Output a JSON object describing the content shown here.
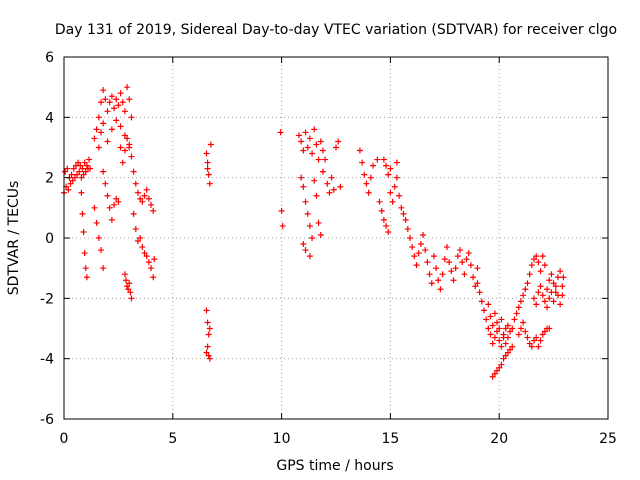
{
  "chart_data": {
    "type": "scatter",
    "title": "Day 131 of 2019, Sidereal Day-to-day VTEC variation (SDTVAR) for receiver clgo",
    "xlabel": "GPS time / hours",
    "ylabel": "SDTVAR / TECUs",
    "xlim": [
      0,
      25
    ],
    "ylim": [
      -6,
      6
    ],
    "xticks": [
      0,
      5,
      10,
      15,
      20,
      25
    ],
    "yticks": [
      -6,
      -4,
      -2,
      0,
      2,
      4,
      6
    ],
    "xtick_labels": [
      "0",
      "5",
      "10",
      "15",
      "20",
      "25"
    ],
    "ytick_labels": [
      "-6",
      "-4",
      "-2",
      "0",
      "2",
      "4",
      "6"
    ],
    "grid": true,
    "marker": "+",
    "series_color": "#ff0000",
    "series": [
      {
        "name": "SDTVAR",
        "points": [
          [
            0.0,
            1.5
          ],
          [
            0.05,
            2.2
          ],
          [
            0.1,
            1.7
          ],
          [
            0.15,
            2.3
          ],
          [
            0.2,
            1.6
          ],
          [
            0.25,
            2.0
          ],
          [
            0.3,
            1.8
          ],
          [
            0.35,
            2.1
          ],
          [
            0.4,
            1.9
          ],
          [
            0.45,
            2.3
          ],
          [
            0.5,
            2.0
          ],
          [
            0.55,
            2.4
          ],
          [
            0.6,
            2.1
          ],
          [
            0.65,
            2.5
          ],
          [
            0.7,
            2.2
          ],
          [
            0.75,
            2.4
          ],
          [
            0.8,
            2.0
          ],
          [
            0.85,
            2.3
          ],
          [
            0.9,
            2.1
          ],
          [
            0.95,
            2.5
          ],
          [
            1.0,
            2.2
          ],
          [
            1.05,
            2.4
          ],
          [
            1.1,
            2.3
          ],
          [
            1.15,
            2.6
          ],
          [
            1.2,
            2.3
          ],
          [
            0.8,
            1.5
          ],
          [
            0.85,
            0.8
          ],
          [
            0.9,
            0.2
          ],
          [
            0.95,
            -0.5
          ],
          [
            1.0,
            -1.0
          ],
          [
            1.05,
            -1.3
          ],
          [
            1.4,
            1.0
          ],
          [
            1.5,
            0.5
          ],
          [
            1.6,
            0.0
          ],
          [
            1.7,
            -0.4
          ],
          [
            1.8,
            -1.0
          ],
          [
            1.4,
            3.3
          ],
          [
            1.5,
            3.6
          ],
          [
            1.6,
            4.0
          ],
          [
            1.7,
            4.5
          ],
          [
            1.8,
            4.9
          ],
          [
            1.9,
            4.6
          ],
          [
            2.0,
            4.2
          ],
          [
            2.1,
            4.5
          ],
          [
            2.2,
            4.7
          ],
          [
            2.3,
            4.3
          ],
          [
            2.4,
            4.6
          ],
          [
            2.5,
            4.4
          ],
          [
            2.6,
            4.8
          ],
          [
            2.7,
            4.5
          ],
          [
            2.8,
            4.2
          ],
          [
            2.9,
            5.0
          ],
          [
            3.0,
            4.6
          ],
          [
            3.1,
            4.0
          ],
          [
            1.6,
            3.0
          ],
          [
            1.7,
            3.5
          ],
          [
            1.8,
            3.8
          ],
          [
            2.0,
            3.2
          ],
          [
            2.2,
            3.6
          ],
          [
            2.4,
            3.9
          ],
          [
            2.6,
            3.7
          ],
          [
            2.8,
            3.4
          ],
          [
            3.0,
            3.0
          ],
          [
            1.8,
            2.2
          ],
          [
            1.9,
            1.8
          ],
          [
            2.0,
            1.4
          ],
          [
            2.1,
            1.0
          ],
          [
            2.2,
            0.6
          ],
          [
            2.3,
            1.1
          ],
          [
            2.4,
            1.3
          ],
          [
            2.5,
            1.2
          ],
          [
            2.6,
            3.0
          ],
          [
            2.7,
            2.5
          ],
          [
            2.8,
            2.9
          ],
          [
            2.9,
            3.3
          ],
          [
            3.0,
            3.1
          ],
          [
            3.1,
            2.7
          ],
          [
            3.2,
            2.2
          ],
          [
            3.3,
            1.8
          ],
          [
            3.4,
            1.5
          ],
          [
            3.5,
            1.3
          ],
          [
            3.6,
            1.2
          ],
          [
            3.7,
            1.4
          ],
          [
            3.8,
            1.6
          ],
          [
            3.9,
            1.3
          ],
          [
            4.0,
            1.1
          ],
          [
            4.1,
            0.9
          ],
          [
            2.8,
            -1.2
          ],
          [
            2.85,
            -1.4
          ],
          [
            2.9,
            -1.6
          ],
          [
            2.95,
            -1.7
          ],
          [
            3.0,
            -1.5
          ],
          [
            3.05,
            -1.8
          ],
          [
            3.1,
            -2.0
          ],
          [
            3.2,
            0.8
          ],
          [
            3.3,
            0.3
          ],
          [
            3.4,
            -0.1
          ],
          [
            3.5,
            0.0
          ],
          [
            3.6,
            -0.3
          ],
          [
            3.7,
            -0.5
          ],
          [
            3.8,
            -0.6
          ],
          [
            3.9,
            -0.8
          ],
          [
            4.0,
            -1.0
          ],
          [
            4.1,
            -1.3
          ],
          [
            4.15,
            -0.7
          ],
          [
            6.55,
            2.8
          ],
          [
            6.6,
            2.5
          ],
          [
            6.65,
            2.1
          ],
          [
            6.7,
            1.8
          ],
          [
            6.75,
            3.1
          ],
          [
            6.6,
            2.3
          ],
          [
            6.55,
            -2.4
          ],
          [
            6.6,
            -2.8
          ],
          [
            6.65,
            -3.2
          ],
          [
            6.7,
            -3.0
          ],
          [
            6.6,
            -3.6
          ],
          [
            6.65,
            -3.9
          ],
          [
            6.7,
            -4.0
          ],
          [
            6.55,
            -3.8
          ],
          [
            9.95,
            3.5
          ],
          [
            10.0,
            0.9
          ],
          [
            10.05,
            0.4
          ],
          [
            10.8,
            3.4
          ],
          [
            10.9,
            3.2
          ],
          [
            11.0,
            2.9
          ],
          [
            11.1,
            3.5
          ],
          [
            11.2,
            3.0
          ],
          [
            11.3,
            3.3
          ],
          [
            11.4,
            2.8
          ],
          [
            11.5,
            3.6
          ],
          [
            11.6,
            3.1
          ],
          [
            11.7,
            2.6
          ],
          [
            11.8,
            3.2
          ],
          [
            11.9,
            2.9
          ],
          [
            10.9,
            2.0
          ],
          [
            11.0,
            1.7
          ],
          [
            11.1,
            1.2
          ],
          [
            11.2,
            0.8
          ],
          [
            11.3,
            0.4
          ],
          [
            11.4,
            0.0
          ],
          [
            11.0,
            -0.2
          ],
          [
            11.1,
            -0.4
          ],
          [
            11.3,
            -0.6
          ],
          [
            11.5,
            1.9
          ],
          [
            11.6,
            1.4
          ],
          [
            11.7,
            0.5
          ],
          [
            11.8,
            0.1
          ],
          [
            11.9,
            2.2
          ],
          [
            12.0,
            2.6
          ],
          [
            12.1,
            1.8
          ],
          [
            12.2,
            1.5
          ],
          [
            12.3,
            2.0
          ],
          [
            12.4,
            1.6
          ],
          [
            12.5,
            3.0
          ],
          [
            12.6,
            3.2
          ],
          [
            12.7,
            1.7
          ],
          [
            13.6,
            2.9
          ],
          [
            13.7,
            2.5
          ],
          [
            13.8,
            2.1
          ],
          [
            13.9,
            1.8
          ],
          [
            14.0,
            1.5
          ],
          [
            14.1,
            2.0
          ],
          [
            14.2,
            2.4
          ],
          [
            14.4,
            2.6
          ],
          [
            14.5,
            1.2
          ],
          [
            14.6,
            0.9
          ],
          [
            14.7,
            0.6
          ],
          [
            14.8,
            0.4
          ],
          [
            14.9,
            0.2
          ],
          [
            15.0,
            2.3
          ],
          [
            14.7,
            2.6
          ],
          [
            14.8,
            2.4
          ],
          [
            14.9,
            2.1
          ],
          [
            15.0,
            1.5
          ],
          [
            15.1,
            1.2
          ],
          [
            15.2,
            1.7
          ],
          [
            15.3,
            2.0
          ],
          [
            15.4,
            1.4
          ],
          [
            15.5,
            1.0
          ],
          [
            15.6,
            0.8
          ],
          [
            15.7,
            0.6
          ],
          [
            15.3,
            2.5
          ],
          [
            15.8,
            0.3
          ],
          [
            15.9,
            0.0
          ],
          [
            16.0,
            -0.3
          ],
          [
            16.1,
            -0.6
          ],
          [
            16.2,
            -0.9
          ],
          [
            16.3,
            -0.5
          ],
          [
            16.4,
            -0.2
          ],
          [
            16.5,
            0.1
          ],
          [
            16.6,
            -0.4
          ],
          [
            16.7,
            -0.8
          ],
          [
            16.8,
            -1.2
          ],
          [
            16.9,
            -1.5
          ],
          [
            17.0,
            -0.6
          ],
          [
            17.1,
            -1.0
          ],
          [
            17.2,
            -1.4
          ],
          [
            17.3,
            -1.7
          ],
          [
            17.4,
            -1.2
          ],
          [
            17.5,
            -0.7
          ],
          [
            17.6,
            -0.3
          ],
          [
            17.7,
            -0.8
          ],
          [
            17.8,
            -1.1
          ],
          [
            17.9,
            -1.4
          ],
          [
            18.0,
            -1.0
          ],
          [
            18.1,
            -0.6
          ],
          [
            18.2,
            -0.4
          ],
          [
            18.3,
            -0.8
          ],
          [
            18.4,
            -1.2
          ],
          [
            18.5,
            -0.7
          ],
          [
            18.6,
            -0.5
          ],
          [
            18.7,
            -0.9
          ],
          [
            18.8,
            -1.3
          ],
          [
            18.9,
            -1.6
          ],
          [
            19.0,
            -1.0
          ],
          [
            19.0,
            -1.5
          ],
          [
            19.1,
            -1.8
          ],
          [
            19.2,
            -2.1
          ],
          [
            19.3,
            -2.4
          ],
          [
            19.4,
            -2.7
          ],
          [
            19.5,
            -3.0
          ],
          [
            19.6,
            -3.2
          ],
          [
            19.7,
            -3.5
          ],
          [
            19.8,
            -3.3
          ],
          [
            19.9,
            -3.1
          ],
          [
            20.0,
            -3.4
          ],
          [
            20.1,
            -3.6
          ],
          [
            20.2,
            -3.2
          ],
          [
            20.3,
            -3.0
          ],
          [
            20.4,
            -3.3
          ],
          [
            20.5,
            -3.1
          ],
          [
            19.5,
            -2.2
          ],
          [
            19.6,
            -2.6
          ],
          [
            19.7,
            -2.9
          ],
          [
            19.8,
            -2.5
          ],
          [
            19.9,
            -2.8
          ],
          [
            20.0,
            -3.0
          ],
          [
            20.1,
            -2.7
          ],
          [
            20.2,
            -3.3
          ],
          [
            20.3,
            -3.5
          ],
          [
            20.4,
            -2.9
          ],
          [
            19.7,
            -4.6
          ],
          [
            19.8,
            -4.5
          ],
          [
            19.9,
            -4.4
          ],
          [
            20.0,
            -4.3
          ],
          [
            20.1,
            -4.2
          ],
          [
            20.2,
            -4.0
          ],
          [
            20.3,
            -3.9
          ],
          [
            20.4,
            -3.8
          ],
          [
            20.5,
            -3.7
          ],
          [
            20.6,
            -3.6
          ],
          [
            20.6,
            -3.0
          ],
          [
            20.7,
            -2.7
          ],
          [
            20.8,
            -2.5
          ],
          [
            20.9,
            -2.3
          ],
          [
            21.0,
            -2.1
          ],
          [
            21.1,
            -1.9
          ],
          [
            21.2,
            -1.7
          ],
          [
            21.3,
            -1.5
          ],
          [
            21.4,
            -1.2
          ],
          [
            21.5,
            -0.9
          ],
          [
            21.6,
            -0.7
          ],
          [
            21.7,
            -0.6
          ],
          [
            21.8,
            -0.8
          ],
          [
            21.9,
            -1.1
          ],
          [
            22.0,
            -0.6
          ],
          [
            22.1,
            -0.9
          ],
          [
            20.9,
            -3.2
          ],
          [
            21.0,
            -3.0
          ],
          [
            21.1,
            -2.8
          ],
          [
            21.2,
            -3.1
          ],
          [
            21.3,
            -3.3
          ],
          [
            21.4,
            -3.5
          ],
          [
            21.5,
            -3.6
          ],
          [
            21.6,
            -3.4
          ],
          [
            21.7,
            -3.3
          ],
          [
            21.8,
            -3.6
          ],
          [
            21.9,
            -3.4
          ],
          [
            22.0,
            -3.2
          ],
          [
            22.1,
            -3.1
          ],
          [
            22.2,
            -3.0
          ],
          [
            22.3,
            -3.0
          ],
          [
            21.6,
            -2.0
          ],
          [
            21.7,
            -2.2
          ],
          [
            21.8,
            -1.8
          ],
          [
            21.9,
            -1.6
          ],
          [
            22.0,
            -1.9
          ],
          [
            22.1,
            -2.1
          ],
          [
            22.2,
            -1.7
          ],
          [
            22.3,
            -1.4
          ],
          [
            22.4,
            -1.2
          ],
          [
            22.5,
            -1.5
          ],
          [
            22.6,
            -1.8
          ],
          [
            22.7,
            -1.3
          ],
          [
            22.8,
            -1.1
          ],
          [
            22.9,
            -1.6
          ],
          [
            22.95,
            -1.3
          ],
          [
            22.2,
            -2.3
          ],
          [
            22.3,
            -2.0
          ],
          [
            22.4,
            -1.8
          ],
          [
            22.5,
            -2.1
          ],
          [
            22.6,
            -1.6
          ],
          [
            22.7,
            -1.9
          ],
          [
            22.8,
            -2.2
          ],
          [
            22.9,
            -1.9
          ]
        ]
      }
    ]
  }
}
